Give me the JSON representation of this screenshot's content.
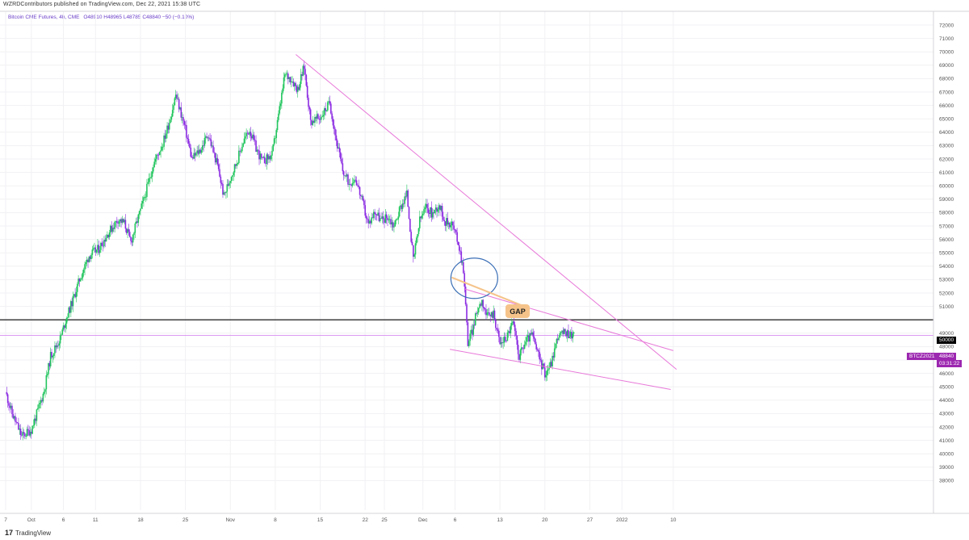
{
  "header": {
    "publisher": "WZRDContributors published on TradingView.com, Dec 22, 2021 15:38 UTC",
    "symbol": "Bitcoin CME Futures, 4h, CME",
    "ohlc": "O48910 H48965 L48785 C48840 −50 (−0.10%)"
  },
  "footer": {
    "logo_mark": "17",
    "brand": "TradingView"
  },
  "price_tags": {
    "level": "50000",
    "ticker": "BTCZ2021",
    "last_price": "48840",
    "countdown": "03:31:22"
  },
  "annotations": {
    "gap_label": "GAP"
  },
  "colors": {
    "bull": "#26a69a",
    "bull_candle": "#22c55e",
    "bear_candle": "#8b2be2",
    "trendline": "#e879d9",
    "level_line": "#000000",
    "last_price_line": "#d78cf0",
    "gap_circle": "#3b6fb6",
    "gap_callout": "#f5c38a"
  },
  "chart_data": {
    "type": "candlestick",
    "interval": "4h",
    "ylim": [
      37500,
      72500
    ],
    "y_ticks": [
      38000,
      39000,
      40000,
      41000,
      42000,
      43000,
      44000,
      45000,
      46000,
      47000,
      48000,
      49000,
      50000,
      51000,
      52000,
      53000,
      54000,
      55000,
      56000,
      57000,
      58000,
      59000,
      60000,
      61000,
      62000,
      63000,
      64000,
      65000,
      66000,
      67000,
      68000,
      69000,
      70000,
      71000,
      72000
    ],
    "x_ticks": [
      "7",
      "Oct",
      "6",
      "11",
      "18",
      "25",
      "Nov",
      "8",
      "15",
      "22",
      "25",
      "Dec",
      "6",
      "13",
      "20",
      "27",
      "2022",
      "10"
    ],
    "x_tick_days": [
      7,
      11,
      16,
      21,
      28,
      35,
      42,
      49,
      56,
      63,
      66,
      72,
      77,
      84,
      91,
      98,
      103,
      111
    ],
    "horizontal_level": 50000,
    "last_price": 48840,
    "trendlines": [
      {
        "name": "descending resistance",
        "from": [
          52.2,
          69800
        ],
        "to": [
          111.5,
          46300
        ]
      },
      {
        "name": "wedge upper",
        "from": [
          78.5,
          52300
        ],
        "to": [
          111.0,
          47700
        ]
      },
      {
        "name": "wedge lower",
        "from": [
          76.2,
          47800
        ],
        "to": [
          110.6,
          44800
        ]
      }
    ],
    "gap_zone": {
      "day": 80.0,
      "price": 53100
    },
    "path": [
      [
        7,
        44600
      ],
      [
        8,
        43000
      ],
      [
        9.5,
        41300
      ],
      [
        11,
        41800
      ],
      [
        12,
        43200
      ],
      [
        13,
        44700
      ],
      [
        14,
        47300
      ],
      [
        15.5,
        48600
      ],
      [
        16.5,
        50200
      ],
      [
        17.5,
        51500
      ],
      [
        18.5,
        53000
      ],
      [
        20,
        54800
      ],
      [
        21.5,
        55300
      ],
      [
        23,
        56500
      ],
      [
        24.5,
        57500
      ],
      [
        25.5,
        57200
      ],
      [
        26.5,
        55800
      ],
      [
        27.5,
        57400
      ],
      [
        28.5,
        58900
      ],
      [
        30,
        61600
      ],
      [
        31.5,
        63200
      ],
      [
        32.5,
        64800
      ],
      [
        33.5,
        66800
      ],
      [
        35,
        64200
      ],
      [
        36,
        62000
      ],
      [
        37.5,
        62800
      ],
      [
        38.5,
        63900
      ],
      [
        40,
        61500
      ],
      [
        41,
        59200
      ],
      [
        42,
        60600
      ],
      [
        43,
        61800
      ],
      [
        44,
        63300
      ],
      [
        45,
        64200
      ],
      [
        46,
        62800
      ],
      [
        47,
        61800
      ],
      [
        48.5,
        62300
      ],
      [
        49.5,
        65200
      ],
      [
        50.5,
        68300
      ],
      [
        51.5,
        68000
      ],
      [
        52.5,
        67200
      ],
      [
        53.5,
        68900
      ],
      [
        54.5,
        64800
      ],
      [
        56,
        65100
      ],
      [
        57.5,
        66200
      ],
      [
        58.5,
        63400
      ],
      [
        59.5,
        61100
      ],
      [
        60.5,
        60200
      ],
      [
        61.5,
        60600
      ],
      [
        62.5,
        58900
      ],
      [
        63.5,
        57100
      ],
      [
        64.5,
        58100
      ],
      [
        65.5,
        57400
      ],
      [
        66.5,
        57700
      ],
      [
        67.5,
        57000
      ],
      [
        68.5,
        58400
      ],
      [
        69.5,
        59400
      ],
      [
        70.5,
        54400
      ],
      [
        71.5,
        57400
      ],
      [
        72.5,
        58400
      ],
      [
        73.5,
        57900
      ],
      [
        74.5,
        58600
      ],
      [
        75.5,
        57300
      ],
      [
        76.5,
        57200
      ],
      [
        77.5,
        55800
      ],
      [
        78.3,
        53800
      ],
      [
        79.0,
        48300
      ],
      [
        79.7,
        49200
      ],
      [
        80.5,
        50800
      ],
      [
        81.2,
        51500
      ],
      [
        82.0,
        50200
      ],
      [
        83.0,
        50500
      ],
      [
        84.0,
        48200
      ],
      [
        85.0,
        48700
      ],
      [
        86.0,
        49800
      ],
      [
        87.0,
        47300
      ],
      [
        88.0,
        48400
      ],
      [
        89.0,
        48900
      ],
      [
        90.0,
        47300
      ],
      [
        91.0,
        46000
      ],
      [
        92.0,
        46800
      ],
      [
        93.0,
        48800
      ],
      [
        94.0,
        49000
      ],
      [
        95.0,
        48950
      ],
      [
        95.5,
        48840
      ]
    ]
  }
}
